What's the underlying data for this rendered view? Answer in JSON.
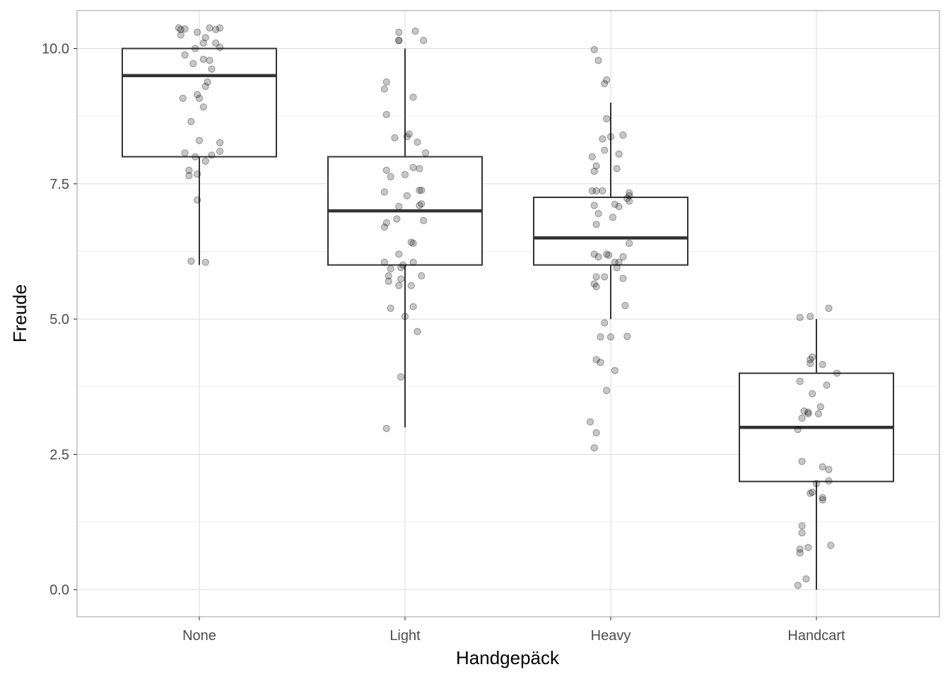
{
  "chart_data": {
    "type": "box",
    "xlabel": "Handgepäck",
    "ylabel": "Freude",
    "categories": [
      "None",
      "Light",
      "Heavy",
      "Handcart"
    ],
    "ylim": [
      -0.5,
      10.7
    ],
    "y_ticks": [
      0.0,
      2.5,
      5.0,
      7.5,
      10.0
    ],
    "y_tick_labels": [
      "0.0",
      "2.5",
      "5.0",
      "7.5",
      "10.0"
    ],
    "grid": true,
    "boxes": [
      {
        "category": "None",
        "whisker_low": 6.0,
        "q1": 8.0,
        "median": 9.5,
        "q3": 10.0,
        "whisker_high": 10.0
      },
      {
        "category": "Light",
        "whisker_low": 3.0,
        "q1": 6.0,
        "median": 7.0,
        "q3": 8.0,
        "whisker_high": 10.0
      },
      {
        "category": "Heavy",
        "whisker_low": 5.0,
        "q1": 6.0,
        "median": 6.5,
        "q3": 7.25,
        "whisker_high": 9.0
      },
      {
        "category": "Handcart",
        "whisker_low": 0.0,
        "q1": 2.0,
        "median": 3.0,
        "q3": 4.0,
        "whisker_high": 5.0
      }
    ],
    "points": [
      {
        "category": "None",
        "x_jitter": -0.09,
        "y": 10.35
      },
      {
        "category": "None",
        "x_jitter": -0.1,
        "y": 10.38
      },
      {
        "category": "None",
        "x_jitter": -0.07,
        "y": 10.36
      },
      {
        "category": "None",
        "x_jitter": -0.09,
        "y": 10.25
      },
      {
        "category": "None",
        "x_jitter": -0.01,
        "y": 10.3
      },
      {
        "category": "None",
        "x_jitter": 0.05,
        "y": 10.38
      },
      {
        "category": "None",
        "x_jitter": 0.1,
        "y": 10.38
      },
      {
        "category": "None",
        "x_jitter": 0.08,
        "y": 10.35
      },
      {
        "category": "None",
        "x_jitter": 0.03,
        "y": 10.2
      },
      {
        "category": "None",
        "x_jitter": 0.02,
        "y": 10.1
      },
      {
        "category": "None",
        "x_jitter": 0.08,
        "y": 10.1
      },
      {
        "category": "None",
        "x_jitter": 0.1,
        "y": 10.02
      },
      {
        "category": "None",
        "x_jitter": -0.02,
        "y": 10.0
      },
      {
        "category": "None",
        "x_jitter": -0.07,
        "y": 9.88
      },
      {
        "category": "None",
        "x_jitter": 0.02,
        "y": 9.8
      },
      {
        "category": "None",
        "x_jitter": 0.05,
        "y": 9.78
      },
      {
        "category": "None",
        "x_jitter": -0.03,
        "y": 9.72
      },
      {
        "category": "None",
        "x_jitter": 0.06,
        "y": 9.62
      },
      {
        "category": "None",
        "x_jitter": 0.04,
        "y": 9.38
      },
      {
        "category": "None",
        "x_jitter": 0.03,
        "y": 9.3
      },
      {
        "category": "None",
        "x_jitter": -0.01,
        "y": 9.15
      },
      {
        "category": "None",
        "x_jitter": 0.0,
        "y": 9.08
      },
      {
        "category": "None",
        "x_jitter": -0.08,
        "y": 9.08
      },
      {
        "category": "None",
        "x_jitter": 0.02,
        "y": 8.92
      },
      {
        "category": "None",
        "x_jitter": -0.04,
        "y": 8.65
      },
      {
        "category": "None",
        "x_jitter": 0.0,
        "y": 8.3
      },
      {
        "category": "None",
        "x_jitter": 0.1,
        "y": 8.26
      },
      {
        "category": "None",
        "x_jitter": 0.1,
        "y": 8.1
      },
      {
        "category": "None",
        "x_jitter": -0.07,
        "y": 8.07
      },
      {
        "category": "None",
        "x_jitter": 0.06,
        "y": 8.03
      },
      {
        "category": "None",
        "x_jitter": -0.02,
        "y": 8.0
      },
      {
        "category": "None",
        "x_jitter": 0.03,
        "y": 7.92
      },
      {
        "category": "None",
        "x_jitter": -0.05,
        "y": 7.75
      },
      {
        "category": "None",
        "x_jitter": -0.05,
        "y": 7.65
      },
      {
        "category": "None",
        "x_jitter": -0.01,
        "y": 7.68
      },
      {
        "category": "None",
        "x_jitter": -0.01,
        "y": 7.2
      },
      {
        "category": "None",
        "x_jitter": -0.04,
        "y": 6.07
      },
      {
        "category": "None",
        "x_jitter": 0.03,
        "y": 6.05
      },
      {
        "category": "Light",
        "x_jitter": -0.03,
        "y": 10.3
      },
      {
        "category": "Light",
        "x_jitter": 0.05,
        "y": 10.32
      },
      {
        "category": "Light",
        "x_jitter": -0.03,
        "y": 10.15
      },
      {
        "category": "Light",
        "x_jitter": -0.03,
        "y": 10.15
      },
      {
        "category": "Light",
        "x_jitter": 0.09,
        "y": 10.15
      },
      {
        "category": "Light",
        "x_jitter": -0.09,
        "y": 9.38
      },
      {
        "category": "Light",
        "x_jitter": -0.1,
        "y": 9.25
      },
      {
        "category": "Light",
        "x_jitter": 0.04,
        "y": 9.1
      },
      {
        "category": "Light",
        "x_jitter": -0.09,
        "y": 8.78
      },
      {
        "category": "Light",
        "x_jitter": 0.02,
        "y": 8.42
      },
      {
        "category": "Light",
        "x_jitter": 0.01,
        "y": 8.37
      },
      {
        "category": "Light",
        "x_jitter": -0.05,
        "y": 8.35
      },
      {
        "category": "Light",
        "x_jitter": 0.06,
        "y": 8.27
      },
      {
        "category": "Light",
        "x_jitter": 0.1,
        "y": 8.07
      },
      {
        "category": "Light",
        "x_jitter": 0.04,
        "y": 7.8
      },
      {
        "category": "Light",
        "x_jitter": -0.09,
        "y": 7.75
      },
      {
        "category": "Light",
        "x_jitter": 0.07,
        "y": 7.78
      },
      {
        "category": "Light",
        "x_jitter": 0.0,
        "y": 7.67
      },
      {
        "category": "Light",
        "x_jitter": -0.07,
        "y": 7.63
      },
      {
        "category": "Light",
        "x_jitter": 0.07,
        "y": 7.38
      },
      {
        "category": "Light",
        "x_jitter": 0.08,
        "y": 7.38
      },
      {
        "category": "Light",
        "x_jitter": -0.1,
        "y": 7.35
      },
      {
        "category": "Light",
        "x_jitter": 0.01,
        "y": 7.28
      },
      {
        "category": "Light",
        "x_jitter": 0.08,
        "y": 7.13
      },
      {
        "category": "Light",
        "x_jitter": 0.07,
        "y": 7.1
      },
      {
        "category": "Light",
        "x_jitter": -0.03,
        "y": 7.08
      },
      {
        "category": "Light",
        "x_jitter": -0.04,
        "y": 6.85
      },
      {
        "category": "Light",
        "x_jitter": 0.09,
        "y": 6.82
      },
      {
        "category": "Light",
        "x_jitter": -0.09,
        "y": 6.78
      },
      {
        "category": "Light",
        "x_jitter": -0.1,
        "y": 6.7
      },
      {
        "category": "Light",
        "x_jitter": 0.03,
        "y": 6.42
      },
      {
        "category": "Light",
        "x_jitter": 0.04,
        "y": 6.4
      },
      {
        "category": "Light",
        "x_jitter": -0.03,
        "y": 6.2
      },
      {
        "category": "Light",
        "x_jitter": -0.1,
        "y": 6.05
      },
      {
        "category": "Light",
        "x_jitter": 0.04,
        "y": 6.05
      },
      {
        "category": "Light",
        "x_jitter": -0.01,
        "y": 6.0
      },
      {
        "category": "Light",
        "x_jitter": -0.02,
        "y": 5.95
      },
      {
        "category": "Light",
        "x_jitter": -0.07,
        "y": 5.93
      },
      {
        "category": "Light",
        "x_jitter": -0.08,
        "y": 5.8
      },
      {
        "category": "Light",
        "x_jitter": 0.08,
        "y": 5.8
      },
      {
        "category": "Light",
        "x_jitter": -0.02,
        "y": 5.74
      },
      {
        "category": "Light",
        "x_jitter": -0.08,
        "y": 5.7
      },
      {
        "category": "Light",
        "x_jitter": 0.03,
        "y": 5.62
      },
      {
        "category": "Light",
        "x_jitter": -0.03,
        "y": 5.62
      },
      {
        "category": "Light",
        "x_jitter": 0.04,
        "y": 5.23
      },
      {
        "category": "Light",
        "x_jitter": -0.07,
        "y": 5.2
      },
      {
        "category": "Light",
        "x_jitter": 0.0,
        "y": 5.05
      },
      {
        "category": "Light",
        "x_jitter": 0.06,
        "y": 4.77
      },
      {
        "category": "Light",
        "x_jitter": -0.02,
        "y": 3.93
      },
      {
        "category": "Light",
        "x_jitter": -0.09,
        "y": 2.98
      },
      {
        "category": "Heavy",
        "x_jitter": -0.08,
        "y": 9.98
      },
      {
        "category": "Heavy",
        "x_jitter": -0.06,
        "y": 9.78
      },
      {
        "category": "Heavy",
        "x_jitter": -0.02,
        "y": 9.42
      },
      {
        "category": "Heavy",
        "x_jitter": -0.03,
        "y": 9.35
      },
      {
        "category": "Heavy",
        "x_jitter": -0.02,
        "y": 8.7
      },
      {
        "category": "Heavy",
        "x_jitter": 0.06,
        "y": 8.4
      },
      {
        "category": "Heavy",
        "x_jitter": 0.0,
        "y": 8.37
      },
      {
        "category": "Heavy",
        "x_jitter": -0.04,
        "y": 8.33
      },
      {
        "category": "Heavy",
        "x_jitter": -0.03,
        "y": 8.12
      },
      {
        "category": "Heavy",
        "x_jitter": 0.04,
        "y": 8.05
      },
      {
        "category": "Heavy",
        "x_jitter": -0.09,
        "y": 8.0
      },
      {
        "category": "Heavy",
        "x_jitter": -0.07,
        "y": 7.83
      },
      {
        "category": "Heavy",
        "x_jitter": 0.03,
        "y": 7.78
      },
      {
        "category": "Heavy",
        "x_jitter": -0.08,
        "y": 7.73
      },
      {
        "category": "Heavy",
        "x_jitter": -0.09,
        "y": 7.37
      },
      {
        "category": "Heavy",
        "x_jitter": -0.07,
        "y": 7.37
      },
      {
        "category": "Heavy",
        "x_jitter": -0.04,
        "y": 7.37
      },
      {
        "category": "Heavy",
        "x_jitter": 0.09,
        "y": 7.33
      },
      {
        "category": "Heavy",
        "x_jitter": 0.09,
        "y": 7.28
      },
      {
        "category": "Heavy",
        "x_jitter": 0.08,
        "y": 7.23
      },
      {
        "category": "Heavy",
        "x_jitter": 0.09,
        "y": 7.18
      },
      {
        "category": "Heavy",
        "x_jitter": 0.02,
        "y": 7.12
      },
      {
        "category": "Heavy",
        "x_jitter": -0.08,
        "y": 7.1
      },
      {
        "category": "Heavy",
        "x_jitter": 0.04,
        "y": 7.08
      },
      {
        "category": "Heavy",
        "x_jitter": -0.06,
        "y": 6.95
      },
      {
        "category": "Heavy",
        "x_jitter": 0.01,
        "y": 6.88
      },
      {
        "category": "Heavy",
        "x_jitter": -0.07,
        "y": 6.75
      },
      {
        "category": "Heavy",
        "x_jitter": 0.09,
        "y": 6.4
      },
      {
        "category": "Heavy",
        "x_jitter": -0.08,
        "y": 6.2
      },
      {
        "category": "Heavy",
        "x_jitter": -0.02,
        "y": 6.2
      },
      {
        "category": "Heavy",
        "x_jitter": -0.06,
        "y": 6.15
      },
      {
        "category": "Heavy",
        "x_jitter": -0.01,
        "y": 6.18
      },
      {
        "category": "Heavy",
        "x_jitter": 0.06,
        "y": 6.15
      },
      {
        "category": "Heavy",
        "x_jitter": 0.04,
        "y": 6.05
      },
      {
        "category": "Heavy",
        "x_jitter": 0.02,
        "y": 6.05
      },
      {
        "category": "Heavy",
        "x_jitter": 0.03,
        "y": 5.95
      },
      {
        "category": "Heavy",
        "x_jitter": -0.07,
        "y": 5.78
      },
      {
        "category": "Heavy",
        "x_jitter": -0.03,
        "y": 5.78
      },
      {
        "category": "Heavy",
        "x_jitter": 0.06,
        "y": 5.75
      },
      {
        "category": "Heavy",
        "x_jitter": -0.08,
        "y": 5.65
      },
      {
        "category": "Heavy",
        "x_jitter": -0.07,
        "y": 5.6
      },
      {
        "category": "Heavy",
        "x_jitter": 0.07,
        "y": 5.25
      },
      {
        "category": "Heavy",
        "x_jitter": -0.03,
        "y": 4.93
      },
      {
        "category": "Heavy",
        "x_jitter": -0.05,
        "y": 4.67
      },
      {
        "category": "Heavy",
        "x_jitter": 0.0,
        "y": 4.67
      },
      {
        "category": "Heavy",
        "x_jitter": 0.08,
        "y": 4.68
      },
      {
        "category": "Heavy",
        "x_jitter": -0.07,
        "y": 4.25
      },
      {
        "category": "Heavy",
        "x_jitter": -0.05,
        "y": 4.2
      },
      {
        "category": "Heavy",
        "x_jitter": 0.02,
        "y": 4.05
      },
      {
        "category": "Heavy",
        "x_jitter": -0.02,
        "y": 3.68
      },
      {
        "category": "Heavy",
        "x_jitter": -0.1,
        "y": 3.1
      },
      {
        "category": "Heavy",
        "x_jitter": -0.07,
        "y": 2.9
      },
      {
        "category": "Heavy",
        "x_jitter": -0.08,
        "y": 2.62
      },
      {
        "category": "Handcart",
        "x_jitter": -0.08,
        "y": 5.03
      },
      {
        "category": "Handcart",
        "x_jitter": -0.03,
        "y": 5.05
      },
      {
        "category": "Handcart",
        "x_jitter": 0.06,
        "y": 5.2
      },
      {
        "category": "Handcart",
        "x_jitter": -0.02,
        "y": 4.3
      },
      {
        "category": "Handcart",
        "x_jitter": -0.03,
        "y": 4.25
      },
      {
        "category": "Handcart",
        "x_jitter": -0.03,
        "y": 4.18
      },
      {
        "category": "Handcart",
        "x_jitter": 0.03,
        "y": 4.16
      },
      {
        "category": "Handcart",
        "x_jitter": 0.1,
        "y": 4.0
      },
      {
        "category": "Handcart",
        "x_jitter": -0.08,
        "y": 3.85
      },
      {
        "category": "Handcart",
        "x_jitter": 0.05,
        "y": 3.78
      },
      {
        "category": "Handcart",
        "x_jitter": -0.02,
        "y": 3.62
      },
      {
        "category": "Handcart",
        "x_jitter": 0.02,
        "y": 3.38
      },
      {
        "category": "Handcart",
        "x_jitter": -0.06,
        "y": 3.3
      },
      {
        "category": "Handcart",
        "x_jitter": -0.04,
        "y": 3.25
      },
      {
        "category": "Handcart",
        "x_jitter": -0.04,
        "y": 3.28
      },
      {
        "category": "Handcart",
        "x_jitter": 0.01,
        "y": 3.25
      },
      {
        "category": "Handcart",
        "x_jitter": -0.07,
        "y": 3.17
      },
      {
        "category": "Handcart",
        "x_jitter": -0.09,
        "y": 2.96
      },
      {
        "category": "Handcart",
        "x_jitter": -0.07,
        "y": 2.37
      },
      {
        "category": "Handcart",
        "x_jitter": 0.03,
        "y": 2.27
      },
      {
        "category": "Handcart",
        "x_jitter": 0.06,
        "y": 2.22
      },
      {
        "category": "Handcart",
        "x_jitter": 0.06,
        "y": 2.01
      },
      {
        "category": "Handcart",
        "x_jitter": 0.0,
        "y": 1.96
      },
      {
        "category": "Handcart",
        "x_jitter": -0.02,
        "y": 1.8
      },
      {
        "category": "Handcart",
        "x_jitter": -0.03,
        "y": 1.78
      },
      {
        "category": "Handcart",
        "x_jitter": 0.03,
        "y": 1.7
      },
      {
        "category": "Handcart",
        "x_jitter": 0.03,
        "y": 1.66
      },
      {
        "category": "Handcart",
        "x_jitter": -0.07,
        "y": 1.18
      },
      {
        "category": "Handcart",
        "x_jitter": -0.07,
        "y": 1.05
      },
      {
        "category": "Handcart",
        "x_jitter": 0.07,
        "y": 0.82
      },
      {
        "category": "Handcart",
        "x_jitter": -0.04,
        "y": 0.78
      },
      {
        "category": "Handcart",
        "x_jitter": -0.08,
        "y": 0.75
      },
      {
        "category": "Handcart",
        "x_jitter": -0.08,
        "y": 0.68
      },
      {
        "category": "Handcart",
        "x_jitter": -0.05,
        "y": 0.2
      },
      {
        "category": "Handcart",
        "x_jitter": -0.09,
        "y": 0.08
      }
    ]
  }
}
